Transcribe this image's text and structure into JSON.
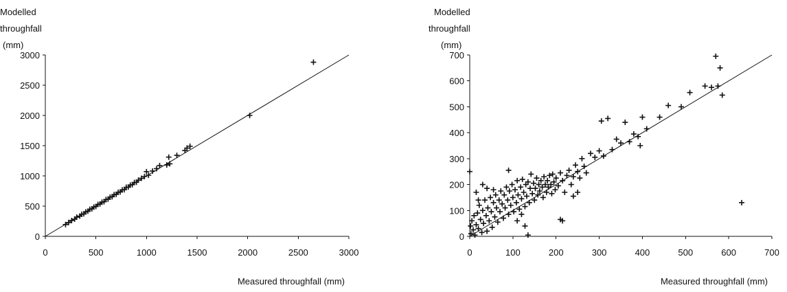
{
  "chart_data": [
    {
      "type": "scatter",
      "ylabel_lines": [
        "Modelled",
        "throughfall",
        "(mm)"
      ],
      "xlabel": "Measured throughfall (mm)",
      "xlim": [
        0,
        3000
      ],
      "ylim": [
        0,
        3000
      ],
      "xticks": [
        0,
        500,
        1000,
        1500,
        2000,
        2500,
        3000
      ],
      "yticks": [
        0,
        500,
        1000,
        1500,
        2000,
        2500,
        3000
      ],
      "marker": "+",
      "fit_line": [
        [
          0,
          0
        ],
        [
          3000,
          3000
        ]
      ],
      "points": [
        [
          200,
          195
        ],
        [
          230,
          228
        ],
        [
          260,
          262
        ],
        [
          290,
          285
        ],
        [
          310,
          318
        ],
        [
          340,
          335
        ],
        [
          360,
          365
        ],
        [
          380,
          372
        ],
        [
          400,
          405
        ],
        [
          420,
          415
        ],
        [
          440,
          448
        ],
        [
          460,
          455
        ],
        [
          480,
          485
        ],
        [
          500,
          495
        ],
        [
          520,
          528
        ],
        [
          540,
          535
        ],
        [
          560,
          565
        ],
        [
          580,
          572
        ],
        [
          600,
          610
        ],
        [
          620,
          615
        ],
        [
          640,
          648
        ],
        [
          660,
          655
        ],
        [
          680,
          690
        ],
        [
          700,
          695
        ],
        [
          720,
          728
        ],
        [
          740,
          735
        ],
        [
          760,
          768
        ],
        [
          780,
          772
        ],
        [
          800,
          812
        ],
        [
          820,
          815
        ],
        [
          840,
          848
        ],
        [
          860,
          855
        ],
        [
          880,
          890
        ],
        [
          900,
          895
        ],
        [
          920,
          930
        ],
        [
          950,
          960
        ],
        [
          980,
          990
        ],
        [
          1000,
          1070
        ],
        [
          1020,
          1010
        ],
        [
          1060,
          1080
        ],
        [
          1100,
          1120
        ],
        [
          1130,
          1170
        ],
        [
          1200,
          1180
        ],
        [
          1230,
          1200
        ],
        [
          1220,
          1310
        ],
        [
          1300,
          1340
        ],
        [
          1380,
          1420
        ],
        [
          1400,
          1460
        ],
        [
          1430,
          1490
        ],
        [
          2020,
          2000
        ],
        [
          2650,
          2880
        ]
      ]
    },
    {
      "type": "scatter",
      "ylabel_lines": [
        "Modelled",
        "throughfall",
        "(mm)"
      ],
      "xlabel": "Measured throughfall (mm)",
      "xlim": [
        0,
        700
      ],
      "ylim": [
        0,
        700
      ],
      "xticks": [
        0,
        100,
        200,
        300,
        400,
        500,
        600,
        700
      ],
      "yticks": [
        0,
        100,
        200,
        300,
        400,
        500,
        600,
        700
      ],
      "marker": "+",
      "fit_line": [
        [
          0,
          0
        ],
        [
          700,
          700
        ]
      ],
      "points": [
        [
          0,
          250
        ],
        [
          2,
          40
        ],
        [
          3,
          10
        ],
        [
          5,
          60
        ],
        [
          8,
          25
        ],
        [
          10,
          80
        ],
        [
          12,
          5
        ],
        [
          15,
          45
        ],
        [
          18,
          90
        ],
        [
          20,
          30
        ],
        [
          22,
          120
        ],
        [
          25,
          65
        ],
        [
          28,
          15
        ],
        [
          30,
          100
        ],
        [
          32,
          50
        ],
        [
          35,
          140
        ],
        [
          38,
          80
        ],
        [
          40,
          20
        ],
        [
          42,
          110
        ],
        [
          45,
          60
        ],
        [
          48,
          150
        ],
        [
          50,
          95
        ],
        [
          52,
          35
        ],
        [
          55,
          130
        ],
        [
          58,
          75
        ],
        [
          60,
          160
        ],
        [
          62,
          110
        ],
        [
          65,
          55
        ],
        [
          68,
          140
        ],
        [
          70,
          95
        ],
        [
          72,
          175
        ],
        [
          75,
          125
        ],
        [
          78,
          70
        ],
        [
          80,
          160
        ],
        [
          82,
          110
        ],
        [
          85,
          190
        ],
        [
          88,
          140
        ],
        [
          90,
          85
        ],
        [
          92,
          175
        ],
        [
          95,
          120
        ],
        [
          98,
          200
        ],
        [
          100,
          150
        ],
        [
          102,
          95
        ],
        [
          105,
          180
        ],
        [
          108,
          130
        ],
        [
          110,
          215
        ],
        [
          112,
          160
        ],
        [
          115,
          105
        ],
        [
          118,
          190
        ],
        [
          120,
          145
        ],
        [
          122,
          220
        ],
        [
          125,
          170
        ],
        [
          128,
          115
        ],
        [
          130,
          200
        ],
        [
          132,
          155
        ],
        [
          135,
          210
        ],
        [
          138,
          130
        ],
        [
          140,
          185
        ],
        [
          142,
          240
        ],
        [
          145,
          165
        ],
        [
          148,
          205
        ],
        [
          150,
          140
        ],
        [
          152,
          185
        ],
        [
          155,
          225
        ],
        [
          158,
          160
        ],
        [
          160,
          200
        ],
        [
          162,
          175
        ],
        [
          165,
          215
        ],
        [
          168,
          190
        ],
        [
          170,
          150
        ],
        [
          172,
          230
        ],
        [
          175,
          200
        ],
        [
          178,
          170
        ],
        [
          180,
          215
        ],
        [
          182,
          190
        ],
        [
          185,
          235
        ],
        [
          188,
          200
        ],
        [
          190,
          165
        ],
        [
          192,
          240
        ],
        [
          195,
          210
        ],
        [
          198,
          180
        ],
        [
          200,
          225
        ],
        [
          205,
          195
        ],
        [
          210,
          245
        ],
        [
          215,
          215
        ],
        [
          220,
          170
        ],
        [
          225,
          235
        ],
        [
          230,
          255
        ],
        [
          235,
          200
        ],
        [
          240,
          230
        ],
        [
          245,
          275
        ],
        [
          250,
          250
        ],
        [
          255,
          225
        ],
        [
          260,
          300
        ],
        [
          265,
          270
        ],
        [
          270,
          245
        ],
        [
          280,
          320
        ],
        [
          290,
          305
        ],
        [
          300,
          330
        ],
        [
          305,
          445
        ],
        [
          310,
          310
        ],
        [
          320,
          455
        ],
        [
          330,
          335
        ],
        [
          340,
          375
        ],
        [
          350,
          360
        ],
        [
          360,
          440
        ],
        [
          370,
          365
        ],
        [
          380,
          395
        ],
        [
          390,
          385
        ],
        [
          395,
          350
        ],
        [
          400,
          460
        ],
        [
          410,
          415
        ],
        [
          440,
          460
        ],
        [
          460,
          505
        ],
        [
          490,
          500
        ],
        [
          510,
          555
        ],
        [
          545,
          580
        ],
        [
          560,
          575
        ],
        [
          570,
          695
        ],
        [
          575,
          580
        ],
        [
          580,
          650
        ],
        [
          585,
          545
        ],
        [
          630,
          130
        ],
        [
          210,
          65
        ],
        [
          215,
          60
        ],
        [
          128,
          40
        ],
        [
          135,
          5
        ],
        [
          240,
          155
        ],
        [
          250,
          170
        ],
        [
          55,
          180
        ],
        [
          90,
          255
        ],
        [
          110,
          60
        ],
        [
          120,
          85
        ],
        [
          15,
          170
        ],
        [
          30,
          200
        ],
        [
          20,
          140
        ],
        [
          40,
          185
        ]
      ]
    }
  ]
}
